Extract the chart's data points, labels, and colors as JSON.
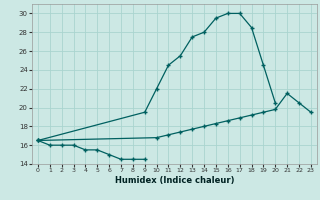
{
  "xlabel": "Humidex (Indice chaleur)",
  "background_color": "#cce8e4",
  "grid_color": "#aad4cf",
  "line_color": "#006060",
  "xlim": [
    -0.5,
    23.5
  ],
  "ylim": [
    14,
    31
  ],
  "xticks": [
    0,
    1,
    2,
    3,
    4,
    5,
    6,
    7,
    8,
    9,
    10,
    11,
    12,
    13,
    14,
    15,
    16,
    17,
    18,
    19,
    20,
    21,
    22,
    23
  ],
  "yticks": [
    14,
    16,
    18,
    20,
    22,
    24,
    26,
    28,
    30
  ],
  "c1_x": [
    0,
    1,
    2,
    3,
    4,
    5,
    6,
    7,
    8,
    9
  ],
  "c1_y": [
    16.5,
    16.0,
    16.0,
    16.0,
    15.5,
    15.5,
    15.0,
    14.5,
    14.5,
    14.5
  ],
  "c2_x": [
    0,
    9,
    10,
    11,
    12,
    13,
    14,
    15,
    16,
    17,
    18,
    19,
    20
  ],
  "c2_y": [
    16.5,
    19.5,
    22.0,
    24.5,
    25.5,
    27.5,
    28.0,
    29.5,
    30.0,
    30.0,
    28.5,
    24.5,
    20.5
  ],
  "c3_x": [
    0,
    10,
    11,
    12,
    13,
    14,
    15,
    16,
    17,
    18,
    19,
    20,
    21,
    22,
    23
  ],
  "c3_y": [
    16.5,
    16.8,
    17.1,
    17.4,
    17.7,
    18.0,
    18.3,
    18.6,
    18.9,
    19.2,
    19.5,
    19.8,
    21.5,
    20.5,
    19.5
  ]
}
